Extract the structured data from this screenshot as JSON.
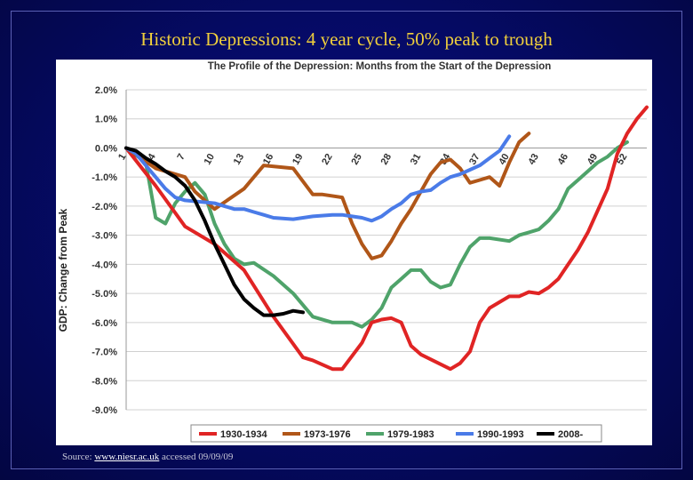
{
  "slide": {
    "title": "Historic Depressions: 4 year cycle, 50% peak to trough",
    "source_prefix": "Source:",
    "source_link": "www.niesr.ac.uk",
    "source_suffix": "accessed 09/09/09"
  },
  "chart_data": {
    "type": "line",
    "title": "The Profile of the Depression: Months from the Start of the Depression",
    "xlabel": "",
    "ylabel": "GDP: Change from Peak",
    "xlim": [
      1,
      54
    ],
    "ylim": [
      -9,
      2
    ],
    "x_ticks": [
      1,
      4,
      7,
      10,
      13,
      16,
      19,
      22,
      25,
      28,
      31,
      34,
      37,
      40,
      43,
      46,
      49,
      52
    ],
    "y_ticks": [
      2,
      1,
      0,
      -1,
      -2,
      -3,
      -4,
      -5,
      -6,
      -7,
      -8,
      -9
    ],
    "y_tick_labels": [
      "2.0%",
      "1.0%",
      "0.0%",
      "-1.0%",
      "-2.0%",
      "-3.0%",
      "-4.0%",
      "-5.0%",
      "-6.0%",
      "-7.0%",
      "-8.0%",
      "-9.0%"
    ],
    "grid": true,
    "legend_position": "bottom",
    "series": [
      {
        "name": "1930-1934",
        "color": "#e02424",
        "x": [
          1,
          4,
          7,
          10,
          13,
          16,
          19,
          20,
          22,
          23,
          25,
          26,
          27,
          28,
          29,
          30,
          31,
          34,
          35,
          36,
          37,
          38,
          40,
          41,
          42,
          43,
          44,
          45,
          46,
          47,
          48,
          50,
          51,
          52,
          53,
          54
        ],
        "y": [
          0,
          -1.3,
          -2.7,
          -3.3,
          -4.2,
          -5.8,
          -7.2,
          -7.3,
          -7.6,
          -7.6,
          -6.7,
          -6.0,
          -5.9,
          -5.85,
          -6.0,
          -6.8,
          -7.1,
          -7.6,
          -7.4,
          -7.0,
          -6.0,
          -5.5,
          -5.1,
          -5.1,
          -4.95,
          -5.0,
          -4.8,
          -4.5,
          -4.0,
          -3.5,
          -2.9,
          -1.4,
          -0.2,
          0.5,
          1.0,
          1.4
        ]
      },
      {
        "name": "1973-1976",
        "color": "#b05618",
        "x": [
          1,
          4,
          7,
          8,
          10,
          13,
          15,
          18,
          20,
          21,
          23,
          24,
          25,
          26,
          27,
          28,
          29,
          30,
          31,
          32,
          33,
          34,
          35,
          36,
          37,
          38,
          39,
          40,
          41,
          42
        ],
        "y": [
          0,
          -0.7,
          -1.0,
          -1.5,
          -2.1,
          -1.4,
          -0.6,
          -0.7,
          -1.6,
          -1.6,
          -1.7,
          -2.6,
          -3.3,
          -3.8,
          -3.7,
          -3.2,
          -2.6,
          -2.1,
          -1.5,
          -0.9,
          -0.5,
          -0.4,
          -0.7,
          -1.2,
          -1.1,
          -1.0,
          -1.3,
          -0.5,
          0.2,
          0.5
        ]
      },
      {
        "name": "1979-1983",
        "color": "#4fa36a",
        "x": [
          1,
          3,
          4,
          5,
          6,
          7,
          8,
          9,
          10,
          11,
          12,
          13,
          14,
          16,
          18,
          20,
          22,
          24,
          25,
          26,
          27,
          28,
          29,
          30,
          31,
          32,
          33,
          34,
          35,
          36,
          37,
          38,
          40,
          41,
          42,
          43,
          44,
          45,
          46,
          47,
          48,
          49,
          50,
          51,
          52
        ],
        "y": [
          0,
          -0.5,
          -2.4,
          -2.6,
          -1.9,
          -1.5,
          -1.2,
          -1.6,
          -2.6,
          -3.3,
          -3.8,
          -4.0,
          -3.95,
          -4.4,
          -5.0,
          -5.8,
          -6.0,
          -6.0,
          -6.15,
          -5.9,
          -5.5,
          -4.8,
          -4.5,
          -4.2,
          -4.2,
          -4.6,
          -4.8,
          -4.7,
          -4.0,
          -3.4,
          -3.1,
          -3.1,
          -3.2,
          -3.0,
          -2.9,
          -2.8,
          -2.5,
          -2.1,
          -1.4,
          -1.1,
          -0.8,
          -0.5,
          -0.3,
          0.0,
          0.2
        ]
      },
      {
        "name": "1990-1993",
        "color": "#4a7be8",
        "x": [
          1,
          2,
          3,
          4,
          5,
          6,
          7,
          10,
          11,
          12,
          13,
          14,
          15,
          16,
          18,
          20,
          22,
          23,
          24,
          25,
          26,
          27,
          28,
          29,
          30,
          31,
          32,
          33,
          34,
          35,
          36,
          37,
          38,
          39,
          40
        ],
        "y": [
          0,
          -0.2,
          -0.6,
          -1.0,
          -1.4,
          -1.7,
          -1.8,
          -1.9,
          -2.0,
          -2.1,
          -2.1,
          -2.2,
          -2.3,
          -2.4,
          -2.45,
          -2.35,
          -2.3,
          -2.3,
          -2.35,
          -2.4,
          -2.5,
          -2.35,
          -2.1,
          -1.9,
          -1.6,
          -1.5,
          -1.45,
          -1.2,
          -1.0,
          -0.9,
          -0.75,
          -0.6,
          -0.35,
          -0.1,
          0.4
        ]
      },
      {
        "name": "2008-",
        "color": "#000000",
        "x": [
          1,
          2,
          3,
          4,
          5,
          6,
          7,
          8,
          9,
          10,
          11,
          12,
          13,
          14,
          15,
          16,
          17,
          18,
          19
        ],
        "y": [
          0,
          -0.1,
          -0.35,
          -0.55,
          -0.8,
          -1.0,
          -1.3,
          -1.8,
          -2.5,
          -3.3,
          -4.0,
          -4.7,
          -5.2,
          -5.5,
          -5.75,
          -5.75,
          -5.7,
          -5.6,
          -5.65
        ]
      }
    ]
  }
}
